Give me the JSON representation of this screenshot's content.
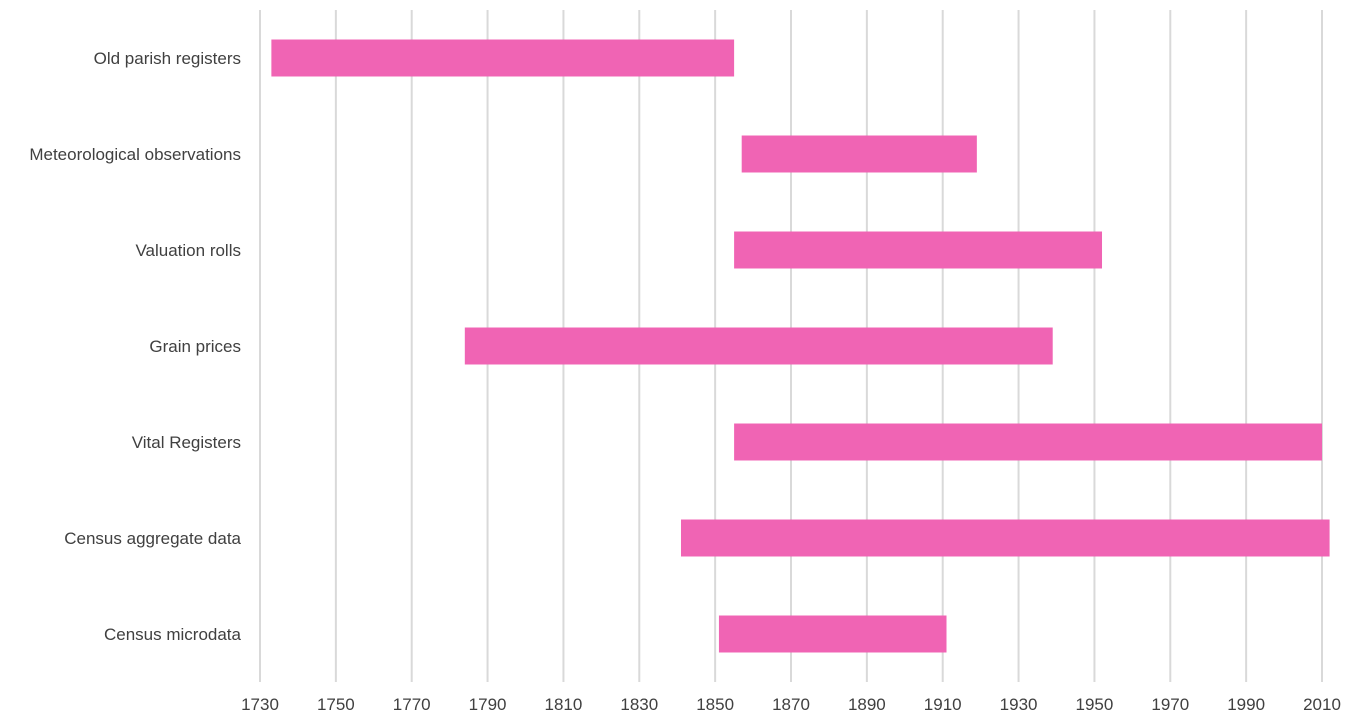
{
  "chart_data": {
    "type": "bar",
    "orientation": "horizontal-range",
    "categories": [
      "Old parish registers",
      "Meteorological observations",
      "Valuation rolls",
      "Grain prices",
      "Vital Registers",
      "Census aggregate data",
      "Census microdata"
    ],
    "series": [
      {
        "ranges": [
          [
            1733,
            1855
          ],
          [
            1857,
            1919
          ],
          [
            1855,
            1952
          ],
          [
            1784,
            1939
          ],
          [
            1855,
            2010
          ],
          [
            1841,
            2012
          ],
          [
            1851,
            1911
          ]
        ]
      }
    ],
    "x_ticks": [
      1730,
      1750,
      1770,
      1790,
      1810,
      1830,
      1850,
      1870,
      1890,
      1910,
      1930,
      1950,
      1970,
      1990,
      2010
    ],
    "xlim": [
      1730,
      2010
    ],
    "grid": "vertical",
    "bar_color": "#f064b4",
    "grid_color": "#d9d9d9",
    "text_color": "#404040",
    "legend": "none"
  }
}
